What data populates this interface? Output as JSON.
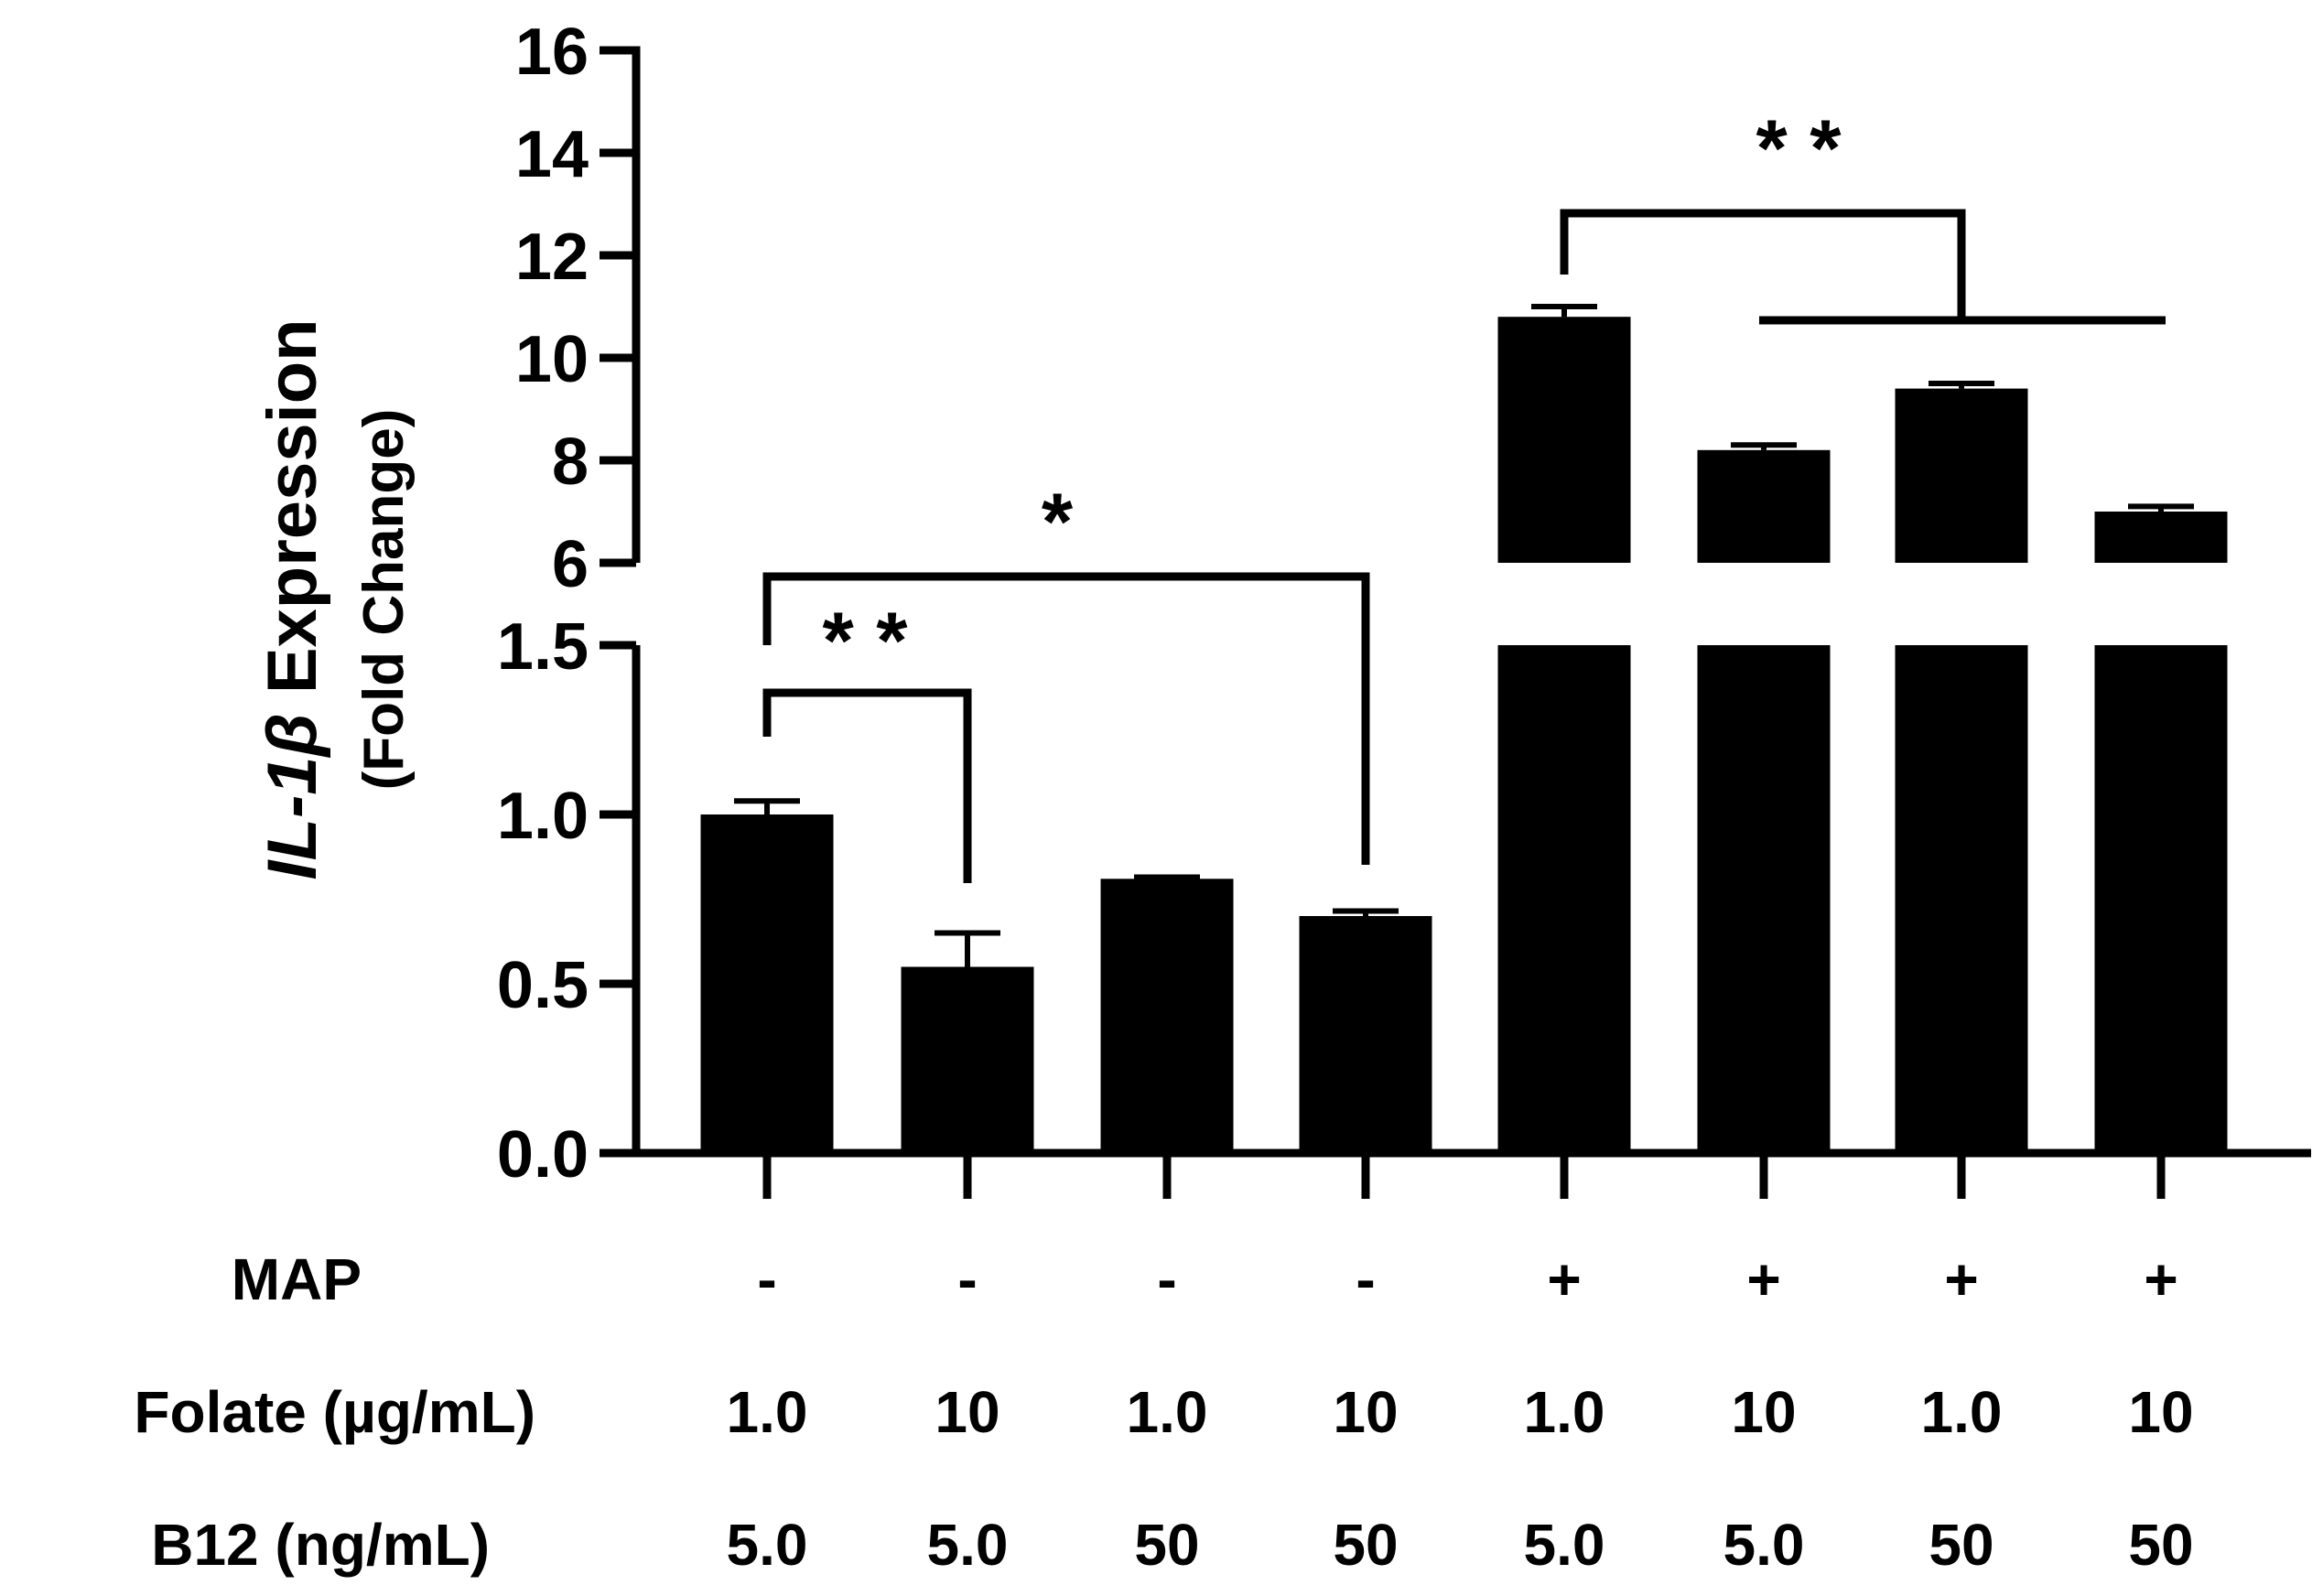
{
  "chart_data": {
    "type": "bar",
    "title": "",
    "ylabel_gene": "IL-1β",
    "ylabel_word": "Expression",
    "ylabel_sub": "(Fold Change)",
    "y_axis": {
      "broken": true,
      "lower_segment": {
        "range": [
          0,
          1.5
        ],
        "ticks": [
          "0.0",
          "0.5",
          "1.0",
          "1.5"
        ]
      },
      "upper_segment": {
        "range": [
          6,
          16
        ],
        "ticks": [
          "6",
          "8",
          "10",
          "12",
          "14",
          "16"
        ]
      }
    },
    "values": [
      1.0,
      0.55,
      0.81,
      0.7,
      10.8,
      8.2,
      9.4,
      7.0
    ],
    "errors": [
      0.04,
      0.1,
      0.005,
      0.015,
      0.2,
      0.1,
      0.1,
      0.1
    ],
    "conditions": {
      "rows": [
        {
          "label": "MAP",
          "values": [
            "-",
            "-",
            "-",
            "-",
            "+",
            "+",
            "+",
            "+"
          ]
        },
        {
          "label": "Folate (µg/mL)",
          "values": [
            "1.0",
            "10",
            "1.0",
            "10",
            "1.0",
            "10",
            "1.0",
            "10"
          ]
        },
        {
          "label": "B12 (ng/mL)",
          "values": [
            "5.0",
            "5.0",
            "50",
            "50",
            "5.0",
            "5.0",
            "50",
            "50"
          ]
        }
      ]
    },
    "significance": [
      {
        "label": "* *",
        "from": 0,
        "to": [
          1
        ]
      },
      {
        "label": "*",
        "from": 0,
        "to": [
          3
        ]
      },
      {
        "label": "* *",
        "from": 4,
        "to": [
          5,
          6,
          7
        ]
      }
    ],
    "bar_color": "#000000"
  }
}
